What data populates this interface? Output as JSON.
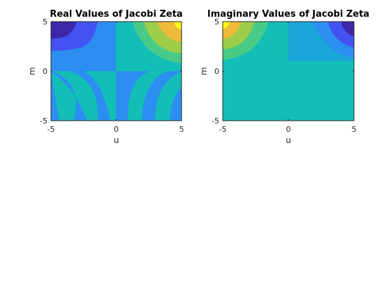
{
  "chart_data": [
    {
      "type": "heatmap",
      "title": "Real Values of Jacobi Zeta",
      "xlabel": "u",
      "ylabel": "m",
      "xlim": [
        -5,
        5
      ],
      "ylim": [
        -5,
        5
      ],
      "xticks": [
        "-5",
        "0",
        "5"
      ],
      "yticks": [
        "-5",
        "0",
        "5"
      ],
      "grid": false,
      "colors": [
        "#3e26a8",
        "#4352f0",
        "#2c8ef0",
        "#1ba6d9",
        "#13beb7",
        "#48cb86",
        "#9ecd49",
        "#f0ba3a",
        "#f9fb15"
      ],
      "regions": [
        {
          "x": [
            -5,
            0
          ],
          "y": [
            -5,
            0
          ],
          "pattern": "bands-down",
          "colors": [
            "#2c8ef0",
            "#13beb7"
          ]
        },
        {
          "x": [
            0,
            5
          ],
          "y": [
            -5,
            0
          ],
          "pattern": "bands-down",
          "colors": [
            "#2c8ef0",
            "#13beb7"
          ]
        },
        {
          "x": [
            -5,
            0
          ],
          "y": [
            0,
            5
          ],
          "pattern": "levels-nw",
          "colors": [
            "#3e26a8",
            "#4352f0",
            "#2c8ef0"
          ]
        },
        {
          "x": [
            0,
            5
          ],
          "y": [
            0,
            5
          ],
          "pattern": "levels-ne",
          "colors": [
            "#f9fb15",
            "#f0ba3a",
            "#9ecd49",
            "#48cb86",
            "#13beb7"
          ]
        }
      ]
    },
    {
      "type": "heatmap",
      "title": "Imaginary Values of Jacobi Zeta",
      "xlabel": "u",
      "ylabel": "m",
      "xlim": [
        -5,
        5
      ],
      "ylim": [
        -5,
        5
      ],
      "xticks": [
        "-5",
        "0",
        "5"
      ],
      "yticks": [
        "-5",
        "0",
        "5"
      ],
      "grid": false,
      "colors": [
        "#f9fb15",
        "#f0ba3a",
        "#9ecd49",
        "#48cb86",
        "#13beb7",
        "#1ba6d9",
        "#2c8ef0",
        "#4352f0",
        "#3e26a8"
      ],
      "regions": [
        {
          "x": [
            -5,
            5
          ],
          "y": [
            -5,
            1
          ],
          "pattern": "flat",
          "colors": [
            "#13beb7"
          ]
        },
        {
          "x": [
            -5,
            0
          ],
          "y": [
            1,
            5
          ],
          "pattern": "levels-nw",
          "colors": [
            "#f9fb15",
            "#f0ba3a",
            "#9ecd49",
            "#48cb86",
            "#13beb7"
          ]
        },
        {
          "x": [
            0,
            5
          ],
          "y": [
            1,
            5
          ],
          "pattern": "levels-ne",
          "colors": [
            "#3e26a8",
            "#4352f0",
            "#2c8ef0",
            "#1ba6d9"
          ]
        }
      ]
    }
  ]
}
